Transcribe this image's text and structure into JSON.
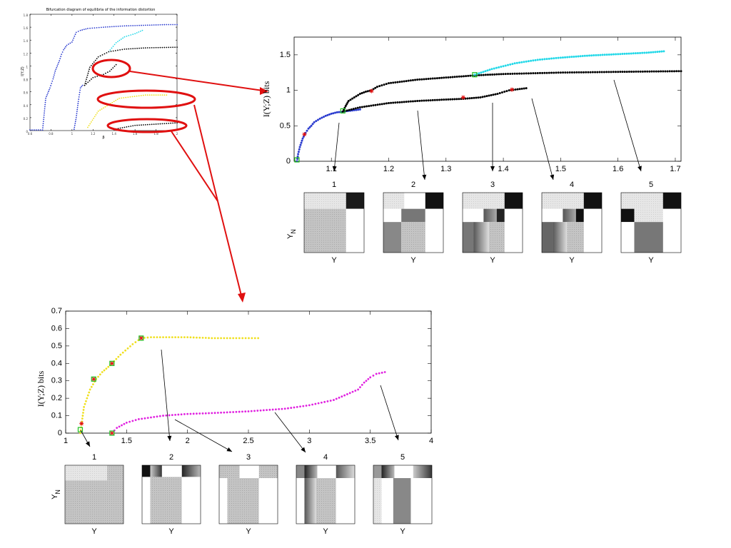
{
  "colors": {
    "blue": "#2b3ccf",
    "cyan": "#22d8e8",
    "black": "#000000",
    "yellow": "#f0e020",
    "magenta": "#e020e0",
    "red": "#e01010",
    "green": "#20c020"
  },
  "chart_data": [
    {
      "id": "overview",
      "type": "scatter",
      "title": "Bifurcation diagram of equilibria of the information distortion",
      "xlabel": "β",
      "ylabel": "I(Y;Z)",
      "xlim": [
        0.6,
        2
      ],
      "ylim": [
        0,
        1.8
      ],
      "xticks": [
        "0.6",
        "0.8",
        "1",
        "1.2",
        "1.4",
        "1.6",
        "1.8",
        "2"
      ],
      "yticks": [
        "0",
        "0.2",
        "0.4",
        "0.6",
        "0.8",
        "1",
        "1.2",
        "1.4",
        "1.6",
        "1.8"
      ],
      "series": [
        {
          "color": "blue",
          "points": [
            [
              0.6,
              0.01
            ],
            [
              0.68,
              0.01
            ],
            [
              0.72,
              0.01
            ],
            [
              0.75,
              0.5
            ],
            [
              0.77,
              0.58
            ],
            [
              0.79,
              0.66
            ],
            [
              0.82,
              0.8
            ],
            [
              0.84,
              0.92
            ],
            [
              0.86,
              1.0
            ],
            [
              0.88,
              1.08
            ],
            [
              0.9,
              1.18
            ],
            [
              0.92,
              1.25
            ],
            [
              0.95,
              1.32
            ],
            [
              1.0,
              1.37
            ],
            [
              1.04,
              1.52
            ],
            [
              1.08,
              1.55
            ],
            [
              1.15,
              1.58
            ],
            [
              1.3,
              1.6
            ],
            [
              1.5,
              1.62
            ],
            [
              1.7,
              1.63
            ],
            [
              1.9,
              1.64
            ],
            [
              2.0,
              1.64
            ]
          ]
        },
        {
          "color": "cyan",
          "points": [
            [
              1.35,
              1.22
            ],
            [
              1.42,
              1.36
            ],
            [
              1.5,
              1.45
            ],
            [
              1.6,
              1.5
            ],
            [
              1.67,
              1.55
            ]
          ]
        },
        {
          "color": "black",
          "points": [
            [
              1.12,
              0.7
            ],
            [
              1.17,
              0.98
            ],
            [
              1.25,
              1.14
            ],
            [
              1.35,
              1.22
            ],
            [
              1.5,
              1.26
            ],
            [
              1.7,
              1.28
            ],
            [
              2.0,
              1.29
            ]
          ]
        },
        {
          "color": "black",
          "points": [
            [
              1.12,
              0.7
            ],
            [
              1.2,
              0.82
            ],
            [
              1.3,
              0.87
            ],
            [
              1.36,
              0.92
            ],
            [
              1.42,
              1.02
            ]
          ]
        },
        {
          "color": "blue",
          "points": [
            [
              1.02,
              0.02
            ],
            [
              1.04,
              0.2
            ],
            [
              1.06,
              0.45
            ],
            [
              1.08,
              0.66
            ],
            [
              1.1,
              0.7
            ]
          ]
        },
        {
          "color": "yellow",
          "points": [
            [
              1.15,
              0.05
            ],
            [
              1.25,
              0.3
            ],
            [
              1.45,
              0.5
            ],
            [
              1.7,
              0.55
            ],
            [
              1.9,
              0.55
            ]
          ]
        },
        {
          "color": "black",
          "points": [
            [
              1.4,
              0.02
            ],
            [
              1.6,
              0.08
            ],
            [
              1.8,
              0.1
            ],
            [
              2.0,
              0.12
            ]
          ]
        }
      ]
    },
    {
      "id": "zoom-top",
      "type": "scatter",
      "xlabel": "",
      "ylabel": "I(Y;Z) bits",
      "xlim": [
        1.035,
        1.71
      ],
      "ylim": [
        0,
        1.75
      ],
      "xticks": [
        "1.1",
        "1.2",
        "1.3",
        "1.4",
        "1.5",
        "1.6",
        "1.7"
      ],
      "yticks": [
        "0",
        "0.5",
        "1",
        "1.5"
      ],
      "series": [
        {
          "color": "blue",
          "points": [
            [
              1.04,
              0.0
            ],
            [
              1.042,
              0.1
            ],
            [
              1.045,
              0.2
            ],
            [
              1.05,
              0.32
            ],
            [
              1.055,
              0.4
            ],
            [
              1.06,
              0.46
            ],
            [
              1.065,
              0.5
            ],
            [
              1.07,
              0.55
            ],
            [
              1.08,
              0.6
            ],
            [
              1.09,
              0.64
            ],
            [
              1.1,
              0.67
            ],
            [
              1.11,
              0.69
            ],
            [
              1.12,
              0.7
            ],
            [
              1.13,
              0.71
            ],
            [
              1.14,
              0.72
            ],
            [
              1.15,
              0.73
            ]
          ]
        },
        {
          "color": "black",
          "points": [
            [
              1.12,
              0.7
            ],
            [
              1.125,
              0.78
            ],
            [
              1.13,
              0.85
            ],
            [
              1.14,
              0.9
            ],
            [
              1.15,
              0.95
            ],
            [
              1.16,
              0.98
            ],
            [
              1.17,
              1.0
            ],
            [
              1.18,
              1.05
            ],
            [
              1.2,
              1.1
            ],
            [
              1.25,
              1.15
            ],
            [
              1.3,
              1.18
            ],
            [
              1.35,
              1.21
            ],
            [
              1.4,
              1.23
            ],
            [
              1.5,
              1.25
            ],
            [
              1.6,
              1.26
            ],
            [
              1.71,
              1.27
            ]
          ]
        },
        {
          "color": "black",
          "points": [
            [
              1.12,
              0.7
            ],
            [
              1.15,
              0.76
            ],
            [
              1.2,
              0.82
            ],
            [
              1.25,
              0.85
            ],
            [
              1.3,
              0.87
            ],
            [
              1.33,
              0.88
            ],
            [
              1.36,
              0.9
            ],
            [
              1.39,
              0.95
            ],
            [
              1.41,
              1.0
            ],
            [
              1.44,
              1.03
            ]
          ]
        },
        {
          "color": "cyan",
          "points": [
            [
              1.35,
              1.22
            ],
            [
              1.38,
              1.3
            ],
            [
              1.42,
              1.38
            ],
            [
              1.46,
              1.43
            ],
            [
              1.5,
              1.46
            ],
            [
              1.55,
              1.49
            ],
            [
              1.6,
              1.51
            ],
            [
              1.65,
              1.53
            ],
            [
              1.68,
              1.55
            ]
          ]
        }
      ],
      "markers": [
        {
          "kind": "red-star",
          "x": 1.053,
          "y": 0.38
        },
        {
          "kind": "red-star",
          "x": 1.17,
          "y": 0.99
        },
        {
          "kind": "red-star",
          "x": 1.33,
          "y": 0.9
        },
        {
          "kind": "red-star",
          "x": 1.415,
          "y": 1.01
        },
        {
          "kind": "green-square",
          "x": 1.12,
          "y": 0.71
        },
        {
          "kind": "green-square",
          "x": 1.35,
          "y": 1.22
        },
        {
          "kind": "green-square",
          "x": 1.04,
          "y": 0.02
        }
      ]
    },
    {
      "id": "zoom-bottom",
      "type": "scatter",
      "xlabel": "",
      "ylabel": "I(Y;Z) bits",
      "xlim": [
        1,
        4
      ],
      "ylim": [
        0,
        0.7
      ],
      "xticks": [
        "1",
        "1.5",
        "2",
        "2.5",
        "3",
        "3.5",
        "4"
      ],
      "yticks": [
        "0",
        "0.1",
        "0.2",
        "0.3",
        "0.4",
        "0.5",
        "0.6",
        "0.7"
      ],
      "series": [
        {
          "color": "yellow",
          "points": [
            [
              1.12,
              0.0
            ],
            [
              1.13,
              0.05
            ],
            [
              1.15,
              0.15
            ],
            [
              1.2,
              0.25
            ],
            [
              1.25,
              0.31
            ],
            [
              1.3,
              0.35
            ],
            [
              1.35,
              0.38
            ],
            [
              1.38,
              0.4
            ],
            [
              1.45,
              0.45
            ],
            [
              1.55,
              0.51
            ],
            [
              1.62,
              0.545
            ],
            [
              1.7,
              0.55
            ],
            [
              1.8,
              0.55
            ],
            [
              2.0,
              0.55
            ],
            [
              2.2,
              0.545
            ],
            [
              2.4,
              0.545
            ],
            [
              2.58,
              0.545
            ]
          ]
        },
        {
          "color": "magenta",
          "points": [
            [
              1.38,
              0.0
            ],
            [
              1.42,
              0.03
            ],
            [
              1.5,
              0.06
            ],
            [
              1.6,
              0.08
            ],
            [
              1.8,
              0.1
            ],
            [
              2.0,
              0.11
            ],
            [
              2.2,
              0.115
            ],
            [
              2.5,
              0.125
            ],
            [
              2.8,
              0.14
            ],
            [
              3.0,
              0.16
            ],
            [
              3.2,
              0.19
            ],
            [
              3.4,
              0.25
            ],
            [
              3.45,
              0.29
            ],
            [
              3.5,
              0.32
            ],
            [
              3.55,
              0.34
            ],
            [
              3.62,
              0.35
            ]
          ]
        }
      ],
      "markers": [
        {
          "kind": "red-star",
          "x": 1.13,
          "y": 0.055
        },
        {
          "kind": "red-star",
          "x": 1.23,
          "y": 0.31
        },
        {
          "kind": "red-star",
          "x": 1.38,
          "y": 0.4
        },
        {
          "kind": "red-star",
          "x": 1.62,
          "y": 0.545
        },
        {
          "kind": "red-star",
          "x": 1.38,
          "y": 0.0
        },
        {
          "kind": "green-square",
          "x": 1.12,
          "y": 0.02
        },
        {
          "kind": "green-square",
          "x": 1.23,
          "y": 0.31
        },
        {
          "kind": "green-square",
          "x": 1.38,
          "y": 0.4
        },
        {
          "kind": "green-square",
          "x": 1.62,
          "y": 0.545
        },
        {
          "kind": "green-square",
          "x": 1.38,
          "y": 0.0
        }
      ]
    }
  ],
  "top_panels": {
    "labels": [
      "1",
      "2",
      "3",
      "4",
      "5"
    ],
    "xlabel": "Y",
    "ylabel": "Y",
    "ylabel_sub": "N",
    "arrow_targets_x": [
      1.06,
      1.16,
      1.36,
      1.44,
      1.58
    ]
  },
  "bottom_panels": {
    "labels": [
      "1",
      "2",
      "3",
      "4",
      "5"
    ],
    "xlabel": "Y",
    "ylabel": "Y",
    "ylabel_sub": "N"
  }
}
